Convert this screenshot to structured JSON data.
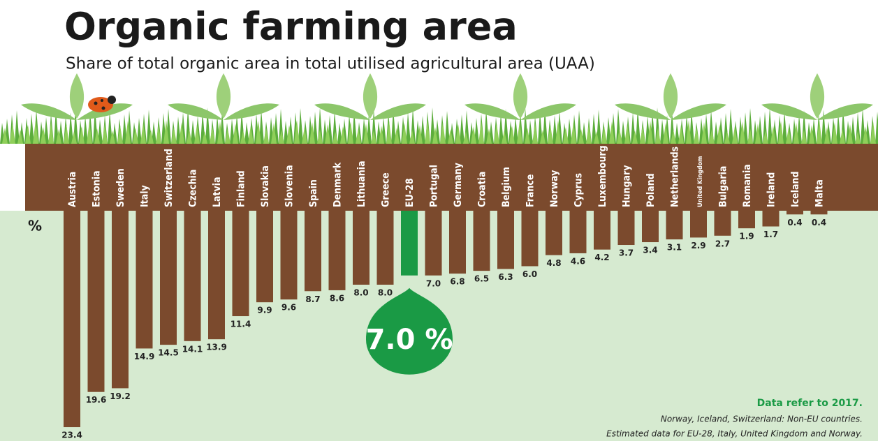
{
  "chart_data": {
    "type": "bar",
    "title": "Organic farming area",
    "subtitle": "Share of total organic area in total utilised agricultural area (UAA)",
    "unit_label": "%",
    "categories": [
      "Austria",
      "Estonia",
      "Sweden",
      "Italy",
      "Switzerland",
      "Czechia",
      "Latvia",
      "Finland",
      "Slovakia",
      "Slovenia",
      "Spain",
      "Denmark",
      "Lithuania",
      "Greece",
      "EU-28",
      "Portugal",
      "Germany",
      "Croatia",
      "Belgium",
      "France",
      "Norway",
      "Cyprus",
      "Luxembourg",
      "Hungary",
      "Poland",
      "Netherlands",
      "United Kingdom",
      "Bulgaria",
      "Romania",
      "Ireland",
      "Iceland",
      "Malta"
    ],
    "values": [
      23.4,
      19.6,
      19.2,
      14.9,
      14.5,
      14.1,
      13.9,
      11.4,
      9.9,
      9.6,
      8.7,
      8.6,
      8.0,
      8.0,
      7.0,
      7.0,
      6.8,
      6.5,
      6.3,
      6.0,
      4.8,
      4.6,
      4.2,
      3.7,
      3.4,
      3.1,
      2.9,
      2.7,
      1.9,
      1.7,
      0.4,
      0.4
    ],
    "value_labels": [
      "23.4",
      "19.6",
      "19.2",
      "14.9",
      "14.5",
      "14.1",
      "13.9",
      "11.4",
      "9.9",
      "9.6",
      "8.7",
      "8.6",
      "8.0",
      "8.0",
      "7.0 %",
      "7.0",
      "6.8",
      "6.5",
      "6.3",
      "6.0",
      "4.8",
      "4.6",
      "4.2",
      "3.7",
      "3.4",
      "3.1",
      "2.9",
      "2.7",
      "1.9",
      "1.7",
      "0.4",
      "0.4"
    ],
    "colors": [
      "#7b4a2d",
      "#7b4a2d",
      "#7b4a2d",
      "#7b4a2d",
      "#7b4a2d",
      "#7b4a2d",
      "#7b4a2d",
      "#7b4a2d",
      "#7b4a2d",
      "#7b4a2d",
      "#7b4a2d",
      "#7b4a2d",
      "#7b4a2d",
      "#7b4a2d",
      "#1a9a45",
      "#7b4a2d",
      "#7b4a2d",
      "#7b4a2d",
      "#7b4a2d",
      "#7b4a2d",
      "#7b4a2d",
      "#7b4a2d",
      "#7b4a2d",
      "#7b4a2d",
      "#7b4a2d",
      "#7b4a2d",
      "#7b4a2d",
      "#7b4a2d",
      "#7b4a2d",
      "#7b4a2d",
      "#7b4a2d",
      "#7b4a2d"
    ],
    "notes": [
      "Data refer to 2017.",
      "Norway, Iceland, Switzerland: Non-EU countries.",
      "Estimated data for EU-28, Italy, United Kingdom and Norway."
    ]
  }
}
